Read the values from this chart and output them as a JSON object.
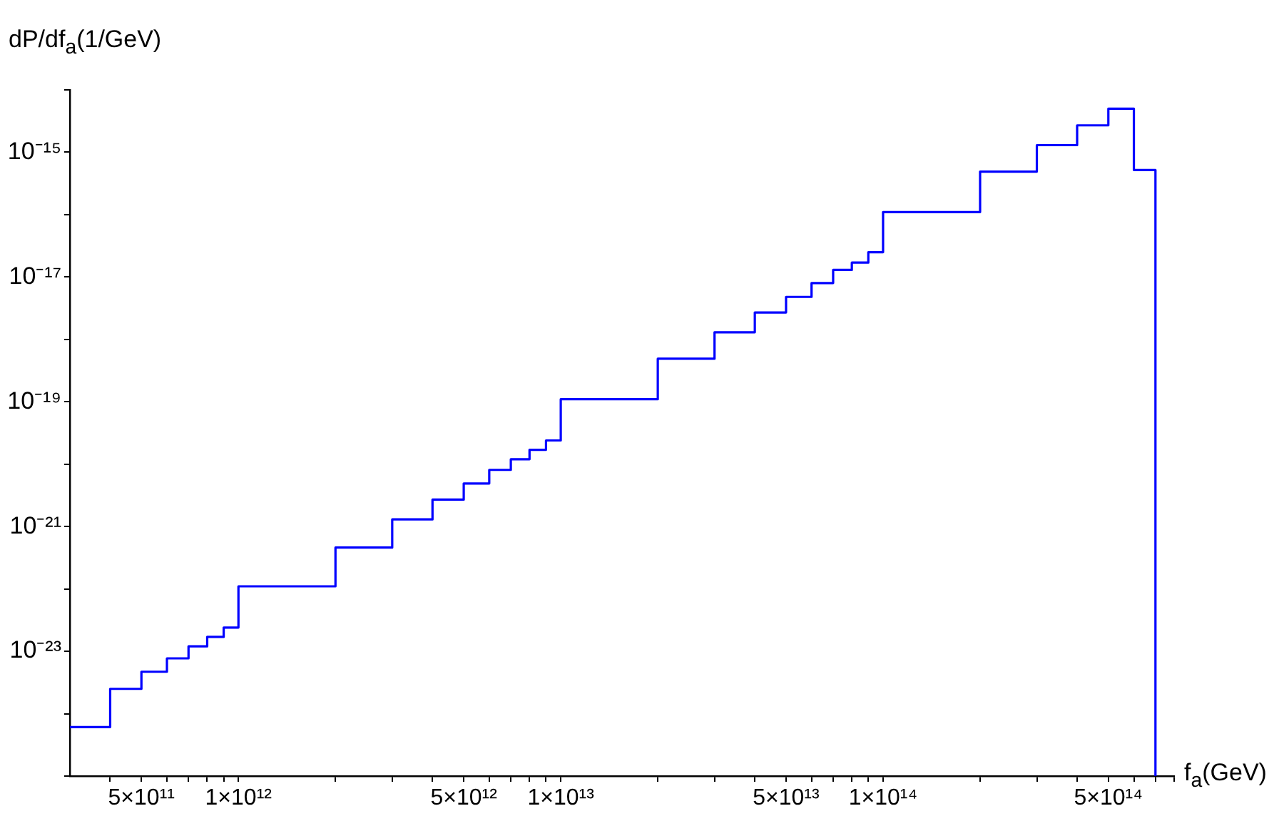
{
  "chart_data": {
    "type": "histogram",
    "xlabel": "f$_{a}$(GeV)",
    "ylabel": "dP/df$_{a}$(1/GeV)",
    "bins": [
      300000000000.0,
      400000000000.0,
      500000000000.0,
      600000000000.0,
      700000000000.0,
      800000000000.0,
      900000000000.0,
      1000000000000.0,
      2000000000000.0,
      3000000000000.0,
      4000000000000.0,
      5000000000000.0,
      6000000000000.0,
      7000000000000.0,
      8000000000000.0,
      9000000000000.0,
      10000000000000.0,
      20000000000000.0,
      30000000000000.0,
      40000000000000.0,
      50000000000000.0,
      60000000000000.0,
      70000000000000.0,
      80000000000000.0,
      90000000000000.0,
      100000000000000.0,
      200000000000000.0,
      300000000000000.0,
      400000000000000.0,
      500000000000000.0,
      600000000000000.0,
      700000000000000.0
    ],
    "values": [
      6.1e-25,
      2.5e-24,
      4.7e-24,
      7.7e-24,
      1.2e-23,
      1.7e-23,
      2.4e-23,
      1.1e-22,
      4.6e-22,
      1.3e-21,
      2.7e-21,
      4.9e-21,
      8.1e-21,
      1.2e-20,
      1.7e-20,
      2.4e-20,
      1.1e-19,
      4.9e-19,
      1.3e-18,
      2.7e-18,
      4.8e-18,
      8e-18,
      1.3e-17,
      1.7e-17,
      2.5e-17,
      1.1e-16,
      4.9e-16,
      1.3e-15,
      2.7e-15,
      5e-15,
      5.2e-16
    ],
    "color": "#0000ff",
    "log": "xy",
    "xlim": [
      300000000000.0,
      800000000000000.0
    ],
    "ylim": [
      1e-25,
      1e-14
    ],
    "xticks": [
      {
        "value": 400000000000.0,
        "label": null
      },
      {
        "value": 500000000000.0,
        "label": "5×10¹¹"
      },
      {
        "value": 600000000000.0,
        "label": null
      },
      {
        "value": 700000000000.0,
        "label": null
      },
      {
        "value": 800000000000.0,
        "label": null
      },
      {
        "value": 900000000000.0,
        "label": null
      },
      {
        "value": 1000000000000.0,
        "label": "1×10¹²"
      },
      {
        "value": 2000000000000.0,
        "label": null
      },
      {
        "value": 3000000000000.0,
        "label": null
      },
      {
        "value": 4000000000000.0,
        "label": null
      },
      {
        "value": 5000000000000.0,
        "label": "5×10¹²"
      },
      {
        "value": 6000000000000.0,
        "label": null
      },
      {
        "value": 7000000000000.0,
        "label": null
      },
      {
        "value": 8000000000000.0,
        "label": null
      },
      {
        "value": 9000000000000.0,
        "label": null
      },
      {
        "value": 10000000000000.0,
        "label": "1×10¹³"
      },
      {
        "value": 20000000000000.0,
        "label": null
      },
      {
        "value": 30000000000000.0,
        "label": null
      },
      {
        "value": 40000000000000.0,
        "label": null
      },
      {
        "value": 50000000000000.0,
        "label": "5×10¹³"
      },
      {
        "value": 60000000000000.0,
        "label": null
      },
      {
        "value": 70000000000000.0,
        "label": null
      },
      {
        "value": 80000000000000.0,
        "label": null
      },
      {
        "value": 90000000000000.0,
        "label": null
      },
      {
        "value": 100000000000000.0,
        "label": "1×10¹⁴"
      },
      {
        "value": 200000000000000.0,
        "label": null
      },
      {
        "value": 300000000000000.0,
        "label": null
      },
      {
        "value": 400000000000000.0,
        "label": null
      },
      {
        "value": 500000000000000.0,
        "label": "5×10¹⁴"
      },
      {
        "value": 600000000000000.0,
        "label": null
      },
      {
        "value": 700000000000000.0,
        "label": null
      },
      {
        "value": 800000000000000.0,
        "label": null
      }
    ],
    "yticks": [
      {
        "value": 1e-25,
        "label": null
      },
      {
        "value": 1e-24,
        "label": null
      },
      {
        "value": 1e-23,
        "label": "10⁻²³"
      },
      {
        "value": 1e-22,
        "label": null
      },
      {
        "value": 1e-21,
        "label": "10⁻²¹"
      },
      {
        "value": 1e-20,
        "label": null
      },
      {
        "value": 1e-19,
        "label": "10⁻¹⁹"
      },
      {
        "value": 1e-18,
        "label": null
      },
      {
        "value": 1e-17,
        "label": "10⁻¹⁷"
      },
      {
        "value": 1e-16,
        "label": null
      },
      {
        "value": 1e-15,
        "label": "10⁻¹⁵"
      },
      {
        "value": 1e-14,
        "label": null
      }
    ]
  }
}
